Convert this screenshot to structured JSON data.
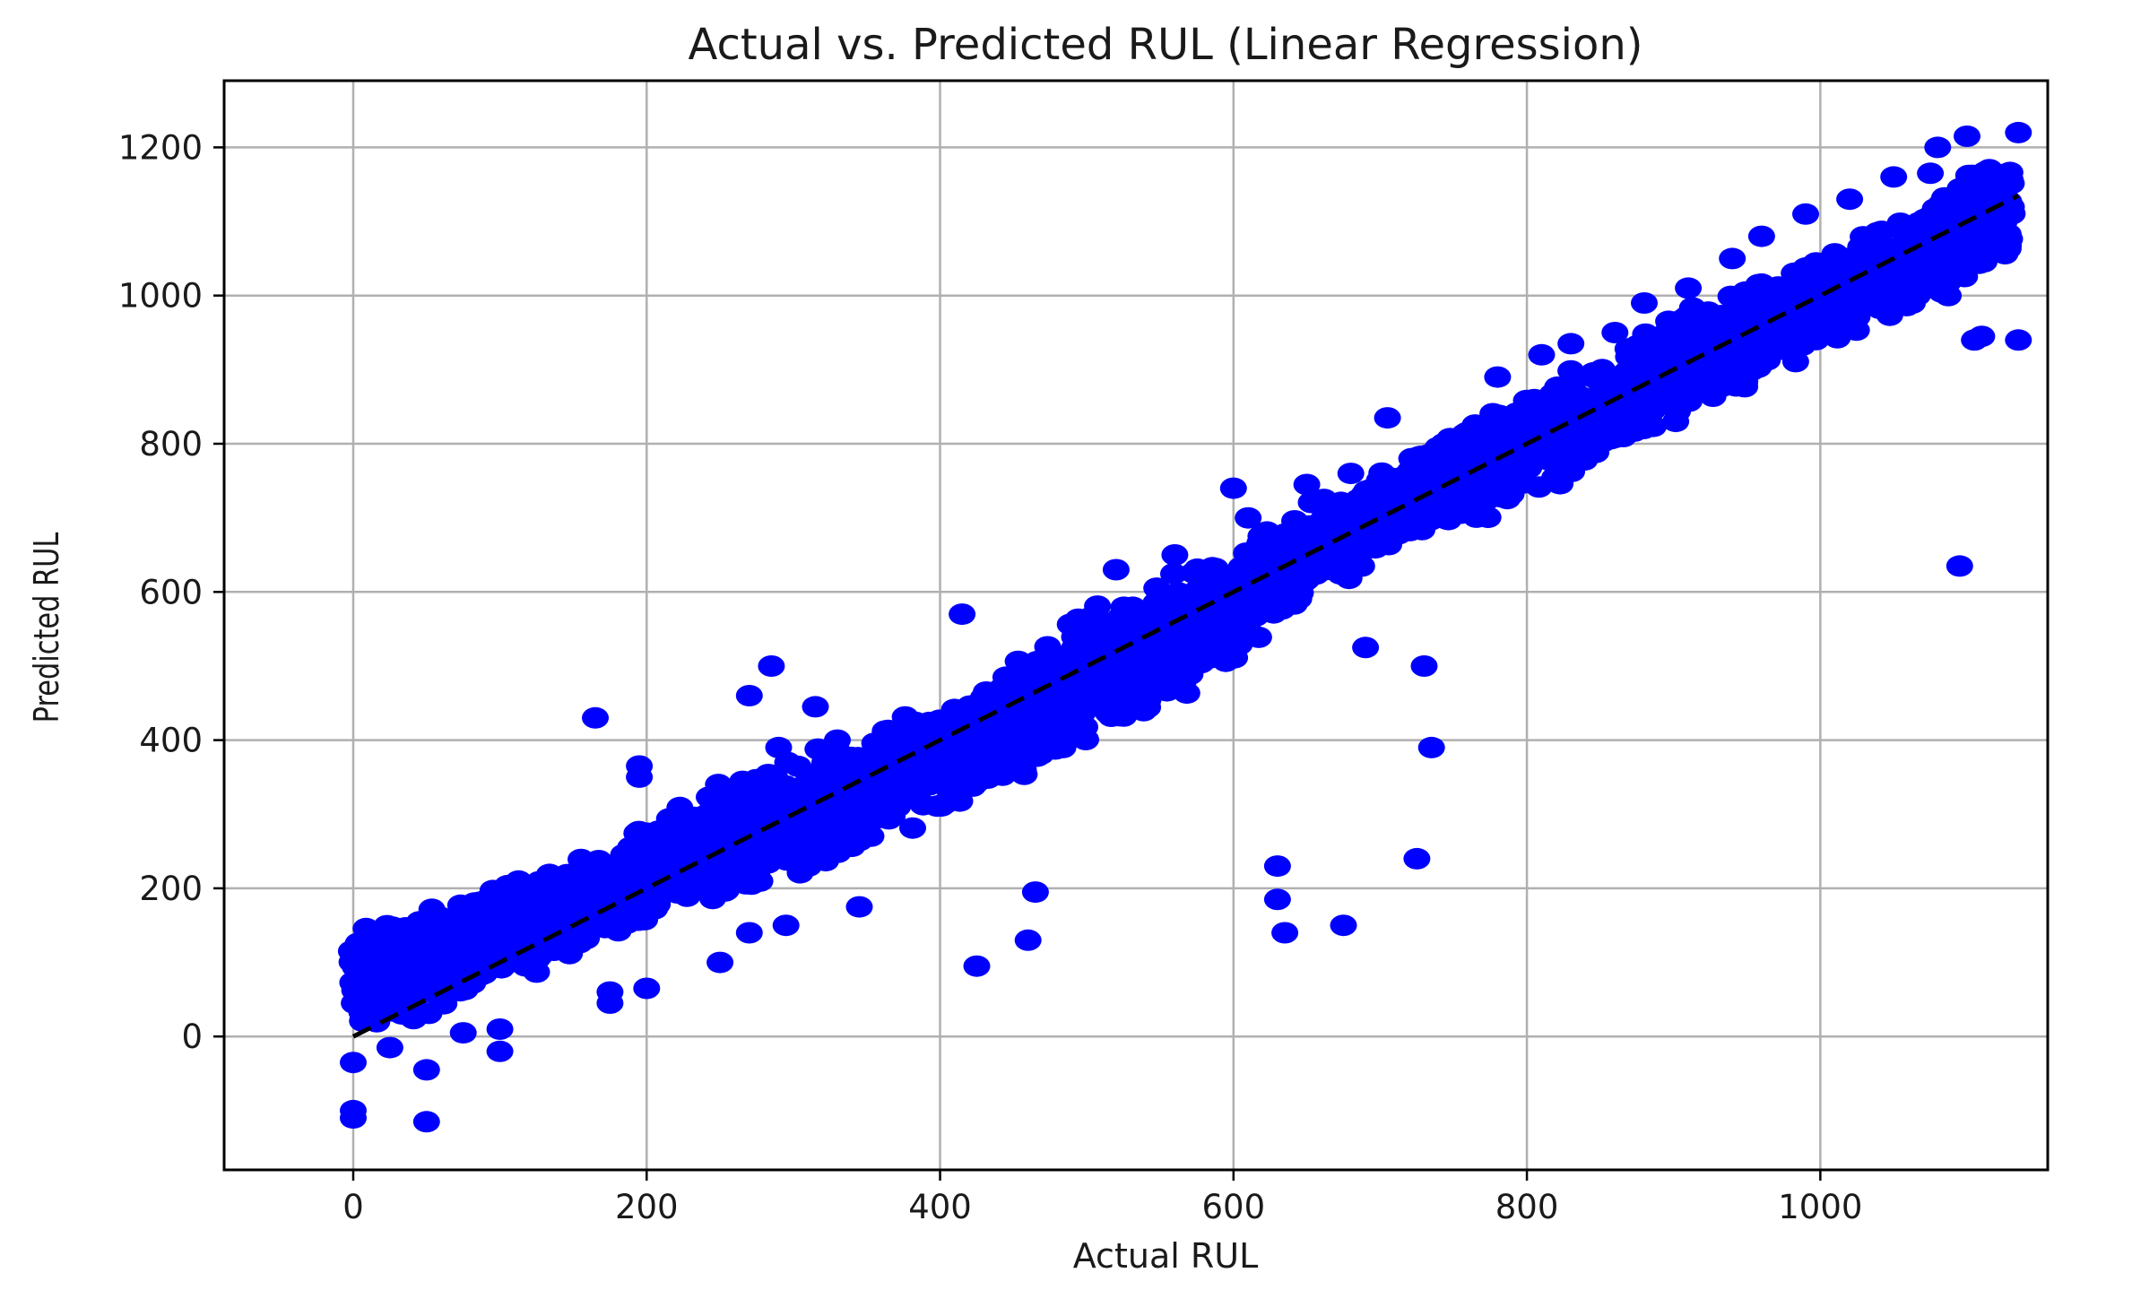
{
  "chart_data": {
    "type": "scatter",
    "title": "Actual vs. Predicted RUL (Linear Regression)",
    "xlabel": "Actual RUL",
    "ylabel": "Predicted RUL",
    "xlim": [
      -88,
      1155
    ],
    "ylim": [
      -180,
      1290
    ],
    "xticks": [
      0,
      200,
      400,
      600,
      800,
      1000
    ],
    "yticks": [
      0,
      200,
      400,
      600,
      800,
      1000,
      1200
    ],
    "xtick_labels": [
      "0",
      "200",
      "400",
      "600",
      "800",
      "1000"
    ],
    "ytick_labels": [
      "0",
      "200",
      "400",
      "600",
      "800",
      "1000",
      "1200"
    ],
    "grid": true,
    "marker_color": "#0000ff",
    "reference_line": {
      "style": "dashed",
      "color": "#000000",
      "x": [
        0,
        1135
      ],
      "y": [
        0,
        1135
      ]
    },
    "band_points_per_x_step": 5,
    "band": [
      [
        0,
        -5,
        165
      ],
      [
        50,
        20,
        175
      ],
      [
        100,
        60,
        215
      ],
      [
        150,
        100,
        250
      ],
      [
        200,
        150,
        290
      ],
      [
        250,
        180,
        350
      ],
      [
        300,
        200,
        390
      ],
      [
        350,
        250,
        420
      ],
      [
        400,
        290,
        460
      ],
      [
        450,
        330,
        510
      ],
      [
        500,
        390,
        580
      ],
      [
        550,
        440,
        620
      ],
      [
        600,
        500,
        670
      ],
      [
        650,
        580,
        720
      ],
      [
        700,
        640,
        770
      ],
      [
        750,
        680,
        820
      ],
      [
        800,
        720,
        870
      ],
      [
        850,
        770,
        920
      ],
      [
        900,
        820,
        980
      ],
      [
        950,
        870,
        1020
      ],
      [
        1000,
        920,
        1060
      ],
      [
        1050,
        960,
        1110
      ],
      [
        1100,
        1000,
        1170
      ],
      [
        1130,
        1020,
        1200
      ]
    ],
    "points": [
      [
        0,
        -110
      ],
      [
        0,
        -100
      ],
      [
        0,
        -35
      ],
      [
        50,
        -115
      ],
      [
        50,
        -45
      ],
      [
        25,
        -15
      ],
      [
        100,
        -20
      ],
      [
        100,
        10
      ],
      [
        75,
        5
      ],
      [
        165,
        430
      ],
      [
        195,
        365
      ],
      [
        195,
        350
      ],
      [
        200,
        65
      ],
      [
        175,
        60
      ],
      [
        175,
        45
      ],
      [
        270,
        460
      ],
      [
        285,
        500
      ],
      [
        315,
        445
      ],
      [
        250,
        100
      ],
      [
        270,
        140
      ],
      [
        295,
        150
      ],
      [
        345,
        175
      ],
      [
        415,
        570
      ],
      [
        425,
        95
      ],
      [
        460,
        130
      ],
      [
        465,
        195
      ],
      [
        630,
        230
      ],
      [
        630,
        185
      ],
      [
        635,
        140
      ],
      [
        675,
        150
      ],
      [
        690,
        525
      ],
      [
        725,
        240
      ],
      [
        730,
        500
      ],
      [
        735,
        390
      ],
      [
        705,
        835
      ],
      [
        1095,
        635
      ],
      [
        1105,
        940
      ],
      [
        1110,
        945
      ],
      [
        1135,
        940
      ],
      [
        1100,
        1215
      ],
      [
        1135,
        1220
      ],
      [
        1080,
        1200
      ],
      [
        1075,
        1165
      ],
      [
        1050,
        1160
      ],
      [
        1020,
        1130
      ],
      [
        990,
        1110
      ],
      [
        960,
        1080
      ],
      [
        940,
        1050
      ],
      [
        910,
        1010
      ],
      [
        880,
        990
      ],
      [
        860,
        950
      ],
      [
        830,
        935
      ],
      [
        810,
        920
      ],
      [
        780,
        890
      ],
      [
        880,
        860
      ],
      [
        900,
        870
      ],
      [
        1100,
        1040
      ],
      [
        1090,
        1060
      ],
      [
        600,
        740
      ],
      [
        610,
        700
      ],
      [
        560,
        650
      ],
      [
        520,
        630
      ],
      [
        650,
        745
      ],
      [
        680,
        760
      ],
      [
        330,
        400
      ],
      [
        290,
        390
      ]
    ]
  }
}
